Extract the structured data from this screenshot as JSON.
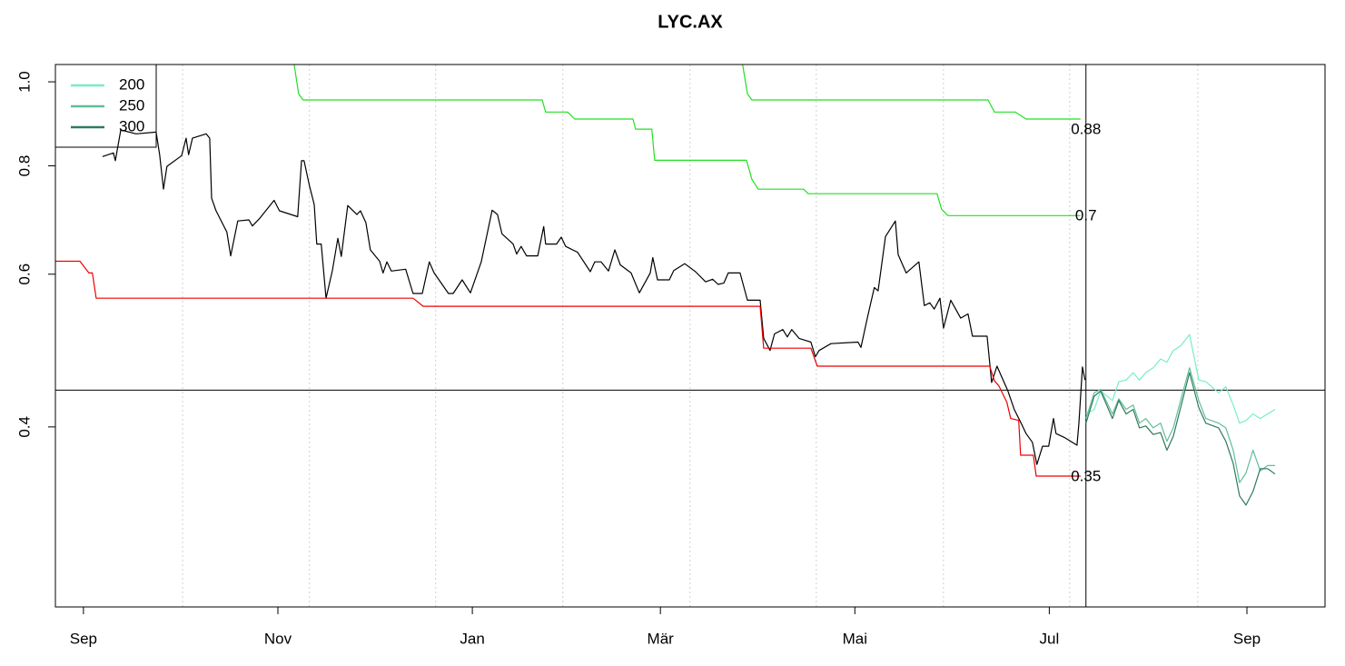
{
  "chart_data": {
    "type": "line",
    "title": "LYC.AX",
    "log_y": true,
    "legend": "top-left",
    "xlim": [
      -8.8,
      389.5
    ],
    "ylim": [
      0.248,
      1.047
    ],
    "xticks": [
      {
        "value": 0,
        "label": "Sep"
      },
      {
        "value": 61,
        "label": "Nov"
      },
      {
        "value": 122,
        "label": "Jan"
      },
      {
        "value": 181,
        "label": "Mär"
      },
      {
        "value": 242,
        "label": "Mai"
      },
      {
        "value": 303,
        "label": "Jul"
      },
      {
        "value": 365,
        "label": "Sep"
      }
    ],
    "yticks": [
      0.4,
      0.6,
      0.8,
      {
        "value": 1,
        "label": "1.0"
      }
    ],
    "xgrid": [
      31.1,
      70.9,
      110.5,
      150.4,
      190.3,
      229.9,
      269.8,
      309.4,
      349.6
    ],
    "hline": 0.441,
    "vline": 314.5,
    "series": [
      {
        "color": "#000000",
        "x": [
          6.0,
          9.4,
          10.0,
          11.7,
          16.5,
          22.8,
          23.9,
          25.1,
          26.2,
          30.8,
          32.2,
          33.0,
          34.2,
          38.5,
          39.6,
          40.2,
          41.6,
          45.0,
          46.2,
          48.4,
          51.9,
          53.0,
          55.3,
          59.8,
          61.5,
          67.2,
          68.4,
          69.2,
          70.9,
          72.4,
          73.2,
          74.6,
          76.1,
          78.1,
          79.8,
          80.9,
          82.9,
          85.8,
          86.9,
          88.6,
          90.0,
          92.9,
          94.0,
          95.2,
          96.6,
          101.1,
          103.4,
          106.3,
          108.5,
          110.0,
          114.5,
          116.0,
          118.8,
          121.4,
          124.8,
          128.2,
          129.9,
          131.3,
          134.8,
          135.9,
          137.3,
          139.0,
          142.5,
          144.4,
          145.0,
          148.4,
          149.9,
          151.3,
          155.0,
          159.0,
          160.4,
          162.4,
          164.7,
          166.7,
          168.4,
          171.8,
          174.4,
          177.8,
          178.6,
          180.1,
          183.8,
          185.2,
          188.6,
          192.0,
          195.2,
          197.4,
          199.1,
          200.9,
          202.3,
          206.0,
          208.3,
          212.3,
          213.4,
          215.4,
          216.8,
          219.4,
          220.8,
          222.2,
          224.5,
          228.2,
          229.6,
          230.8,
          234.5,
          243.0,
          243.9,
          245.9,
          248.1,
          249.3,
          251.6,
          254.7,
          255.6,
          258.1,
          262.1,
          263.8,
          265.5,
          266.9,
          268.7,
          269.8,
          272.1,
          275.2,
          277.5,
          278.9,
          283.5,
          284.9,
          286.6,
          290.0,
          292.0,
          294.3,
          295.7,
          297.7,
          299.1,
          300.9,
          302.8,
          304.3,
          305.1,
          307.7,
          311.7,
          312.3,
          313.4,
          314.2
        ],
        "values": [
          0.82,
          0.828,
          0.811,
          0.88,
          0.871,
          0.875,
          0.824,
          0.752,
          0.799,
          0.822,
          0.861,
          0.824,
          0.861,
          0.871,
          0.861,
          0.734,
          0.71,
          0.671,
          0.63,
          0.691,
          0.693,
          0.682,
          0.696,
          0.73,
          0.71,
          0.699,
          0.811,
          0.811,
          0.759,
          0.722,
          0.65,
          0.65,
          0.563,
          0.606,
          0.66,
          0.629,
          0.72,
          0.703,
          0.71,
          0.688,
          0.64,
          0.621,
          0.602,
          0.62,
          0.605,
          0.608,
          0.57,
          0.57,
          0.62,
          0.602,
          0.57,
          0.57,
          0.591,
          0.571,
          0.62,
          0.711,
          0.703,
          0.668,
          0.65,
          0.633,
          0.646,
          0.63,
          0.63,
          0.681,
          0.65,
          0.65,
          0.662,
          0.646,
          0.636,
          0.604,
          0.62,
          0.62,
          0.605,
          0.64,
          0.615,
          0.602,
          0.571,
          0.602,
          0.627,
          0.591,
          0.591,
          0.606,
          0.617,
          0.604,
          0.588,
          0.592,
          0.584,
          0.586,
          0.602,
          0.602,
          0.56,
          0.56,
          0.506,
          0.49,
          0.512,
          0.518,
          0.508,
          0.518,
          0.506,
          0.501,
          0.482,
          0.49,
          0.499,
          0.501,
          0.494,
          0.534,
          0.579,
          0.574,
          0.663,
          0.691,
          0.632,
          0.602,
          0.62,
          0.552,
          0.556,
          0.547,
          0.563,
          0.52,
          0.56,
          0.534,
          0.54,
          0.509,
          0.509,
          0.45,
          0.47,
          0.44,
          0.419,
          0.403,
          0.393,
          0.384,
          0.362,
          0.38,
          0.38,
          0.409,
          0.393,
          0.389,
          0.381,
          0.404,
          0.469,
          0.453
        ]
      },
      {
        "color": "#ee0000",
        "label": 0.35,
        "x": [
          -8.8,
          -1.1,
          1.7,
          2.8,
          4.0,
          103.4,
          106.6,
          212.3,
          213.4,
          228.2,
          230.2,
          284.3,
          285.8,
          287.2,
          289.7,
          290.9,
          293.4,
          294.0,
          298.0,
          298.9,
          312.8
        ],
        "values": [
          0.621,
          0.621,
          0.602,
          0.602,
          0.563,
          0.563,
          0.551,
          0.551,
          0.493,
          0.493,
          0.47,
          0.47,
          0.452,
          0.446,
          0.427,
          0.409,
          0.407,
          0.371,
          0.371,
          0.351,
          0.351
        ]
      },
      {
        "color": "#22e022",
        "label": 0.7,
        "x": [
          66.1,
          67.5,
          68.9,
          143.9,
          145.0,
          151.9,
          154.1,
          172.4,
          173.2,
          178.3,
          179.2,
          208.0,
          209.7,
          211.7,
          225.9,
          227.4,
          267.8,
          269.2,
          271.2,
          312.8
        ],
        "values": [
          1.047,
          0.969,
          0.953,
          0.953,
          0.923,
          0.923,
          0.906,
          0.906,
          0.882,
          0.882,
          0.812,
          0.812,
          0.772,
          0.752,
          0.752,
          0.743,
          0.743,
          0.713,
          0.701,
          0.701
        ]
      },
      {
        "color": "#22e022",
        "label": 0.88,
        "x": [
          206.8,
          208.3,
          209.7,
          283.8,
          285.8,
          292.3,
          295.7,
          312.8
        ],
        "values": [
          1.047,
          0.969,
          0.953,
          0.953,
          0.923,
          0.923,
          0.906,
          0.906
        ]
      },
      {
        "name": "200",
        "color": "#76eec6",
        "x": [
          314.5,
          317.1,
          319.1,
          322.8,
          324.8,
          327.1,
          329.3,
          331.3,
          333.3,
          335.6,
          337.9,
          339.9,
          341.9,
          344.2,
          347.0,
          349.9,
          352.1,
          356.1,
          358.4,
          360.7,
          362.7,
          364.7,
          366.9,
          369.2,
          371.5,
          373.8
        ],
        "values": [
          0.414,
          0.419,
          0.44,
          0.429,
          0.451,
          0.453,
          0.462,
          0.453,
          0.462,
          0.468,
          0.479,
          0.475,
          0.49,
          0.496,
          0.511,
          0.453,
          0.451,
          0.438,
          0.445,
          0.424,
          0.404,
          0.407,
          0.414,
          0.409,
          0.414,
          0.419
        ]
      },
      {
        "name": "250",
        "color": "#5fbf98",
        "x": [
          314.5,
          317.1,
          319.1,
          322.8,
          324.8,
          327.1,
          329.3,
          331.3,
          333.3,
          335.6,
          337.9,
          339.9,
          341.9,
          344.2,
          347.0,
          349.9,
          352.1,
          356.1,
          358.4,
          360.7,
          362.7,
          364.7,
          366.9,
          369.2,
          371.5,
          373.8
        ],
        "values": [
          0.409,
          0.438,
          0.442,
          0.414,
          0.431,
          0.419,
          0.424,
          0.404,
          0.409,
          0.399,
          0.404,
          0.385,
          0.399,
          0.429,
          0.468,
          0.429,
          0.409,
          0.404,
          0.399,
          0.376,
          0.345,
          0.354,
          0.376,
          0.356,
          0.361,
          0.361
        ]
      },
      {
        "name": "300",
        "color": "#2f7a5c",
        "x": [
          314.5,
          317.1,
          319.1,
          322.8,
          324.8,
          327.1,
          329.3,
          331.3,
          333.3,
          335.6,
          337.9,
          339.9,
          341.9,
          344.2,
          347.0,
          349.9,
          352.1,
          356.1,
          358.4,
          360.7,
          362.7,
          364.7,
          366.9,
          369.2,
          371.5,
          373.8
        ],
        "values": [
          0.404,
          0.434,
          0.44,
          0.409,
          0.429,
          0.414,
          0.419,
          0.399,
          0.401,
          0.392,
          0.394,
          0.376,
          0.39,
          0.421,
          0.462,
          0.421,
          0.404,
          0.399,
          0.385,
          0.363,
          0.333,
          0.325,
          0.337,
          0.358,
          0.358,
          0.353
        ]
      }
    ]
  }
}
